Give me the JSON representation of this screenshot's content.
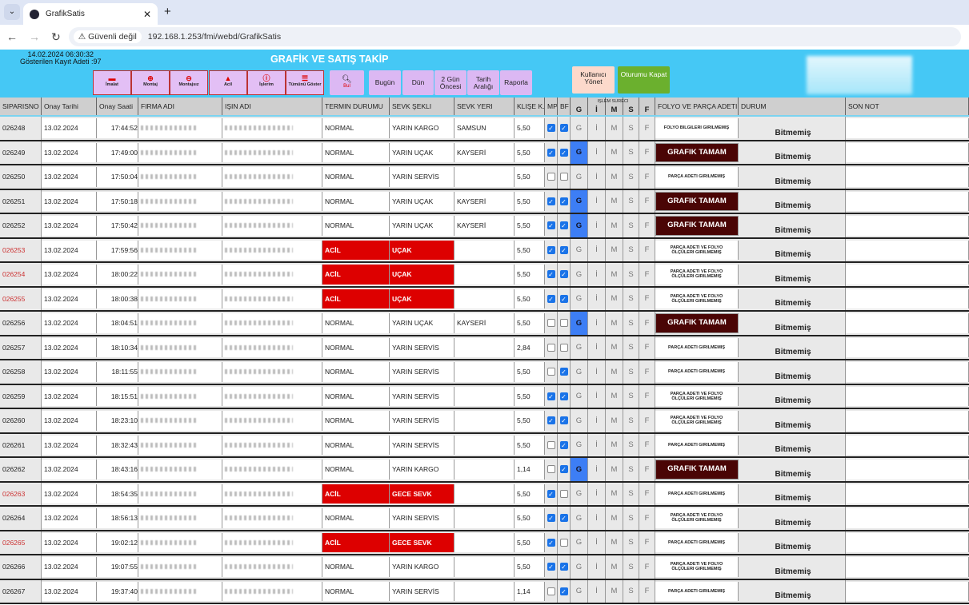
{
  "browser": {
    "tab_title": "GrafikSatis",
    "security": "Güvenli değil",
    "url": "192.168.1.253/fmi/webd/GrafikSatis"
  },
  "header": {
    "datetime": "14.02.2024 06:30:32",
    "record_count": "Gösterilen Kayıt Adeti :97",
    "title": "GRAFİK VE SATIŞ TAKİP"
  },
  "toolbar": {
    "filters": [
      {
        "label": "İmalat",
        "icon": "minus-icon"
      },
      {
        "label": "Montaj",
        "icon": "plus-circle-icon"
      },
      {
        "label": "Montajsız",
        "icon": "minus-circle-icon"
      },
      {
        "label": "Acil",
        "icon": "warning-icon"
      },
      {
        "label": "İşlerim",
        "icon": "info-icon"
      },
      {
        "label": "Tümünü Göster",
        "icon": "list-icon"
      }
    ],
    "search": "Bul",
    "dates": [
      "Bugün",
      "Dün",
      "2 Gün Öncesi",
      "Tarih Aralığı",
      "Raporla"
    ],
    "user_manage": "Kullanıcı Yönet",
    "logout": "Oturumu Kapat"
  },
  "columns": [
    "SIPARISNO",
    "Onay Tarihi",
    "Onay Saati",
    "FIRMA ADI",
    "IŞIN ADI",
    "TERMIN DURUMU",
    "SEVK ŞEKLI",
    "SEVK YERI",
    "KLIŞE K.",
    "MP",
    "BF",
    "G",
    "İ",
    "M",
    "S",
    "F",
    "FOLYO VE PARÇA ADETI",
    "DURUM",
    "SON NOT"
  ],
  "process_header": "IŞLEM SURECI",
  "rows": [
    {
      "no": "026248",
      "date": "13.02.2024",
      "time": "17:44:52",
      "termin": "NORMAL",
      "sevk": "YARIN KARGO",
      "yer": "SAMSUN",
      "klise": "5,50",
      "mp": true,
      "bf": true,
      "g": false,
      "folyo": "FOLYO BILGILERI GIRILMEMIŞ",
      "durum": "Bitmemiş",
      "urgent": false
    },
    {
      "no": "026249",
      "date": "13.02.2024",
      "time": "17:49:00",
      "termin": "NORMAL",
      "sevk": "YARIN UÇAK",
      "yer": "KAYSERİ",
      "klise": "5,50",
      "mp": true,
      "bf": true,
      "g": true,
      "folyo": "GRAFIK TAMAM",
      "durum": "Bitmemiş",
      "urgent": false
    },
    {
      "no": "026250",
      "date": "13.02.2024",
      "time": "17:50:04",
      "termin": "NORMAL",
      "sevk": "YARIN SERVİS",
      "yer": "",
      "klise": "5,50",
      "mp": false,
      "bf": false,
      "g": false,
      "folyo": "PARÇA ADETI GIRILMEMIŞ",
      "durum": "Bitmemiş",
      "urgent": false
    },
    {
      "no": "026251",
      "date": "13.02.2024",
      "time": "17:50:18",
      "termin": "NORMAL",
      "sevk": "YARIN UÇAK",
      "yer": "KAYSERİ",
      "klise": "5,50",
      "mp": true,
      "bf": true,
      "g": true,
      "folyo": "GRAFIK TAMAM",
      "durum": "Bitmemiş",
      "urgent": false
    },
    {
      "no": "026252",
      "date": "13.02.2024",
      "time": "17:50:42",
      "termin": "NORMAL",
      "sevk": "YARIN UÇAK",
      "yer": "KAYSERİ",
      "klise": "5,50",
      "mp": true,
      "bf": true,
      "g": true,
      "folyo": "GRAFIK TAMAM",
      "durum": "Bitmemiş",
      "urgent": false
    },
    {
      "no": "026253",
      "date": "13.02.2024",
      "time": "17:59:56",
      "termin": "ACİL",
      "sevk": "UÇAK",
      "yer": "",
      "klise": "5,50",
      "mp": true,
      "bf": true,
      "g": false,
      "folyo": "PARÇA ADETI VE FOLYO ÖLÇÜLERI GIRILMEMIŞ",
      "durum": "Bitmemiş",
      "urgent": true
    },
    {
      "no": "026254",
      "date": "13.02.2024",
      "time": "18:00:22",
      "termin": "ACİL",
      "sevk": "UÇAK",
      "yer": "",
      "klise": "5,50",
      "mp": true,
      "bf": true,
      "g": false,
      "folyo": "PARÇA ADETI VE FOLYO ÖLÇÜLERI GIRILMEMIŞ",
      "durum": "Bitmemiş",
      "urgent": true
    },
    {
      "no": "026255",
      "date": "13.02.2024",
      "time": "18:00:38",
      "termin": "ACİL",
      "sevk": "UÇAK",
      "yer": "",
      "klise": "5,50",
      "mp": true,
      "bf": true,
      "g": false,
      "folyo": "PARÇA ADETI VE FOLYO ÖLÇÜLERI GIRILMEMIŞ",
      "durum": "Bitmemiş",
      "urgent": true
    },
    {
      "no": "026256",
      "date": "13.02.2024",
      "time": "18:04:51",
      "termin": "NORMAL",
      "sevk": "YARIN UÇAK",
      "yer": "KAYSERİ",
      "klise": "5,50",
      "mp": false,
      "bf": false,
      "g": true,
      "folyo": "GRAFIK TAMAM",
      "durum": "Bitmemiş",
      "urgent": false
    },
    {
      "no": "026257",
      "date": "13.02.2024",
      "time": "18:10:34",
      "termin": "NORMAL",
      "sevk": "YARIN SERVİS",
      "yer": "",
      "klise": "2,84",
      "mp": false,
      "bf": false,
      "g": false,
      "folyo": "PARÇA ADETI GIRILMEMIŞ",
      "durum": "Bitmemiş",
      "urgent": false
    },
    {
      "no": "026258",
      "date": "13.02.2024",
      "time": "18:11:55",
      "termin": "NORMAL",
      "sevk": "YARIN SERVİS",
      "yer": "",
      "klise": "5,50",
      "mp": false,
      "bf": true,
      "g": false,
      "folyo": "PARÇA ADETI GIRILMEMIŞ",
      "durum": "Bitmemiş",
      "urgent": false
    },
    {
      "no": "026259",
      "date": "13.02.2024",
      "time": "18:15:51",
      "termin": "NORMAL",
      "sevk": "YARIN SERVİS",
      "yer": "",
      "klise": "5,50",
      "mp": true,
      "bf": true,
      "g": false,
      "folyo": "PARÇA ADETI VE FOLYO ÖLÇÜLERI GIRILMEMIŞ",
      "durum": "Bitmemiş",
      "urgent": false
    },
    {
      "no": "026260",
      "date": "13.02.2024",
      "time": "18:23:10",
      "termin": "NORMAL",
      "sevk": "YARIN SERVİS",
      "yer": "",
      "klise": "5,50",
      "mp": true,
      "bf": true,
      "g": false,
      "folyo": "PARÇA ADETI VE FOLYO ÖLÇÜLERI GIRILMEMIŞ",
      "durum": "Bitmemiş",
      "urgent": false
    },
    {
      "no": "026261",
      "date": "13.02.2024",
      "time": "18:32:43",
      "termin": "NORMAL",
      "sevk": "YARIN SERVİS",
      "yer": "",
      "klise": "5,50",
      "mp": false,
      "bf": true,
      "g": false,
      "folyo": "PARÇA ADETI GIRILMEMIŞ",
      "durum": "Bitmemiş",
      "urgent": false
    },
    {
      "no": "026262",
      "date": "13.02.2024",
      "time": "18:43:16",
      "termin": "NORMAL",
      "sevk": "YARIN KARGO",
      "yer": "",
      "klise": "1,14",
      "mp": false,
      "bf": true,
      "g": true,
      "folyo": "GRAFIK TAMAM",
      "durum": "Bitmemiş",
      "urgent": false
    },
    {
      "no": "026263",
      "date": "13.02.2024",
      "time": "18:54:35",
      "termin": "ACİL",
      "sevk": "GECE SEVK",
      "yer": "",
      "klise": "5,50",
      "mp": true,
      "bf": false,
      "g": false,
      "folyo": "PARÇA ADETI GIRILMEMIŞ",
      "durum": "Bitmemiş",
      "urgent": true
    },
    {
      "no": "026264",
      "date": "13.02.2024",
      "time": "18:56:13",
      "termin": "NORMAL",
      "sevk": "YARIN SERVİS",
      "yer": "",
      "klise": "5,50",
      "mp": true,
      "bf": true,
      "g": false,
      "folyo": "PARÇA ADETI VE FOLYO ÖLÇÜLERI GIRILMEMIŞ",
      "durum": "Bitmemiş",
      "urgent": false
    },
    {
      "no": "026265",
      "date": "13.02.2024",
      "time": "19:02:12",
      "termin": "ACİL",
      "sevk": "GECE SEVK",
      "yer": "",
      "klise": "5,50",
      "mp": true,
      "bf": false,
      "g": false,
      "folyo": "PARÇA ADETI GIRILMEMIŞ",
      "durum": "Bitmemiş",
      "urgent": true
    },
    {
      "no": "026266",
      "date": "13.02.2024",
      "time": "19:07:55",
      "termin": "NORMAL",
      "sevk": "YARIN KARGO",
      "yer": "",
      "klise": "5,50",
      "mp": true,
      "bf": true,
      "g": false,
      "folyo": "PARÇA ADETI VE FOLYO ÖLÇÜLERI GIRILMEMIŞ",
      "durum": "Bitmemiş",
      "urgent": false
    },
    {
      "no": "026267",
      "date": "13.02.2024",
      "time": "19:37:40",
      "termin": "NORMAL",
      "sevk": "YARIN SERVİS",
      "yer": "",
      "klise": "1,14",
      "mp": false,
      "bf": true,
      "g": false,
      "folyo": "PARÇA ADETI GIRILMEMIŞ",
      "durum": "Bitmemiş",
      "urgent": false
    }
  ],
  "colors": {
    "header_bg": "#45c8f5",
    "urgent": "#dd0000",
    "grafik_tamam": "#4a0505",
    "g_active": "#3d7ef5",
    "filter_btn": "#e3bff5"
  }
}
